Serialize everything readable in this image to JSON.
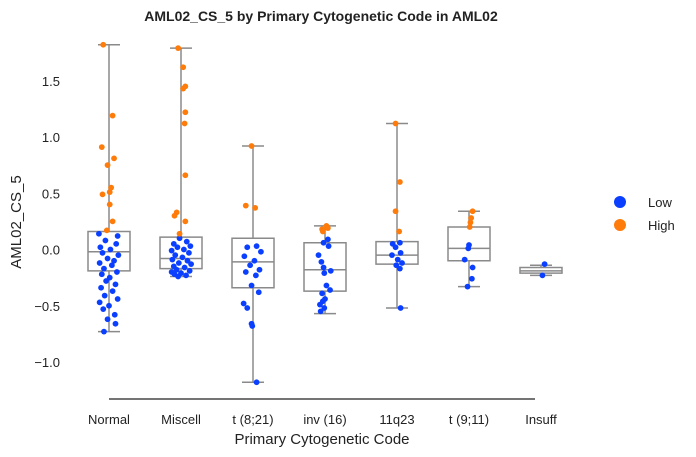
{
  "chart_data": {
    "type": "box+strip",
    "title": "AML02_CS_5 by Primary Cytogenetic Code in AML02",
    "xlabel": "Primary Cytogenetic Code",
    "ylabel": "AML02_CS_5",
    "ylim": [
      -1.33,
      1.85
    ],
    "yticks": [
      -1.0,
      -0.5,
      0.0,
      0.5,
      1.0,
      1.5
    ],
    "ytick_labels": [
      "−1.0",
      "−0.5",
      "0.0",
      "0.5",
      "1.0",
      "1.5"
    ],
    "categories": [
      "Normal",
      "Miscell",
      "t (8;21)",
      "inv (16)",
      "11q23",
      "t (9;11)",
      "Insuff"
    ],
    "colors": {
      "low": "#0a3fff",
      "high": "#ff7b0a",
      "box": "#8a8a8a"
    },
    "legend": {
      "placement": "right",
      "entries": [
        {
          "key": "low",
          "label": "Low"
        },
        {
          "key": "high",
          "label": "High"
        }
      ]
    },
    "boxes": [
      {
        "category": "Normal",
        "whislo": -0.73,
        "q1": -0.19,
        "med": -0.02,
        "q3": 0.16,
        "whishi": 1.82
      },
      {
        "category": "Miscell",
        "whislo": -0.24,
        "q1": -0.17,
        "med": -0.08,
        "q3": 0.11,
        "whishi": 1.79
      },
      {
        "category": "t (8;21)",
        "whislo": -1.18,
        "q1": -0.34,
        "med": -0.11,
        "q3": 0.1,
        "whishi": 0.92
      },
      {
        "category": "inv (16)",
        "whislo": -0.57,
        "q1": -0.37,
        "med": -0.18,
        "q3": 0.06,
        "whishi": 0.21
      },
      {
        "category": "11q23",
        "whislo": -0.52,
        "q1": -0.13,
        "med": -0.05,
        "q3": 0.07,
        "whishi": 1.12
      },
      {
        "category": "t (9;11)",
        "whislo": -0.33,
        "q1": -0.1,
        "med": 0.01,
        "q3": 0.2,
        "whishi": 0.34
      },
      {
        "category": "Insuff",
        "whislo": -0.23,
        "q1": -0.21,
        "med": -0.19,
        "q3": -0.16,
        "whishi": -0.14
      }
    ],
    "series": [
      {
        "name": "Low",
        "group": "low",
        "points": [
          {
            "cat": 0,
            "dx": -0.14,
            "y": 0.14
          },
          {
            "cat": 0,
            "dx": 0.12,
            "y": 0.12
          },
          {
            "cat": 0,
            "dx": -0.05,
            "y": 0.08
          },
          {
            "cat": 0,
            "dx": 0.1,
            "y": 0.05
          },
          {
            "cat": 0,
            "dx": -0.12,
            "y": 0.02
          },
          {
            "cat": 0,
            "dx": 0.02,
            "y": 0.0
          },
          {
            "cat": 0,
            "dx": -0.09,
            "y": -0.03
          },
          {
            "cat": 0,
            "dx": 0.13,
            "y": -0.05
          },
          {
            "cat": 0,
            "dx": -0.02,
            "y": -0.08
          },
          {
            "cat": 0,
            "dx": 0.07,
            "y": -0.1
          },
          {
            "cat": 0,
            "dx": -0.13,
            "y": -0.12
          },
          {
            "cat": 0,
            "dx": 0.04,
            "y": -0.14
          },
          {
            "cat": 0,
            "dx": -0.07,
            "y": -0.17
          },
          {
            "cat": 0,
            "dx": 0.11,
            "y": -0.2
          },
          {
            "cat": 0,
            "dx": -0.1,
            "y": -0.22
          },
          {
            "cat": 0,
            "dx": 0.01,
            "y": -0.25
          },
          {
            "cat": 0,
            "dx": -0.04,
            "y": -0.28
          },
          {
            "cat": 0,
            "dx": 0.09,
            "y": -0.31
          },
          {
            "cat": 0,
            "dx": -0.11,
            "y": -0.34
          },
          {
            "cat": 0,
            "dx": 0.05,
            "y": -0.37
          },
          {
            "cat": 0,
            "dx": -0.06,
            "y": -0.41
          },
          {
            "cat": 0,
            "dx": 0.12,
            "y": -0.44
          },
          {
            "cat": 0,
            "dx": -0.13,
            "y": -0.47
          },
          {
            "cat": 0,
            "dx": 0.0,
            "y": -0.5
          },
          {
            "cat": 0,
            "dx": -0.08,
            "y": -0.53
          },
          {
            "cat": 0,
            "dx": 0.08,
            "y": -0.58
          },
          {
            "cat": 0,
            "dx": -0.02,
            "y": -0.62
          },
          {
            "cat": 0,
            "dx": 0.09,
            "y": -0.66
          },
          {
            "cat": 0,
            "dx": -0.07,
            "y": -0.73
          },
          {
            "cat": 1,
            "dx": -0.02,
            "y": 0.1
          },
          {
            "cat": 1,
            "dx": 0.08,
            "y": 0.07
          },
          {
            "cat": 1,
            "dx": -0.1,
            "y": 0.05
          },
          {
            "cat": 1,
            "dx": 0.13,
            "y": 0.03
          },
          {
            "cat": 1,
            "dx": -0.05,
            "y": 0.02
          },
          {
            "cat": 1,
            "dx": 0.04,
            "y": 0.0
          },
          {
            "cat": 1,
            "dx": -0.13,
            "y": -0.01
          },
          {
            "cat": 1,
            "dx": 0.11,
            "y": -0.03
          },
          {
            "cat": 1,
            "dx": -0.08,
            "y": -0.05
          },
          {
            "cat": 1,
            "dx": 0.02,
            "y": -0.07
          },
          {
            "cat": 1,
            "dx": -0.12,
            "y": -0.09
          },
          {
            "cat": 1,
            "dx": 0.09,
            "y": -0.1
          },
          {
            "cat": 1,
            "dx": -0.03,
            "y": -0.12
          },
          {
            "cat": 1,
            "dx": 0.14,
            "y": -0.13
          },
          {
            "cat": 1,
            "dx": -0.1,
            "y": -0.15
          },
          {
            "cat": 1,
            "dx": 0.05,
            "y": -0.16
          },
          {
            "cat": 1,
            "dx": -0.06,
            "y": -0.18
          },
          {
            "cat": 1,
            "dx": 0.12,
            "y": -0.19
          },
          {
            "cat": 1,
            "dx": -0.13,
            "y": -0.2
          },
          {
            "cat": 1,
            "dx": 0.0,
            "y": -0.21
          },
          {
            "cat": 1,
            "dx": -0.09,
            "y": -0.22
          },
          {
            "cat": 1,
            "dx": 0.07,
            "y": -0.23
          },
          {
            "cat": 1,
            "dx": -0.04,
            "y": -0.24
          },
          {
            "cat": 2,
            "dx": 0.05,
            "y": 0.03
          },
          {
            "cat": 2,
            "dx": -0.08,
            "y": 0.02
          },
          {
            "cat": 2,
            "dx": 0.11,
            "y": -0.02
          },
          {
            "cat": 2,
            "dx": -0.12,
            "y": -0.06
          },
          {
            "cat": 2,
            "dx": 0.02,
            "y": -0.1
          },
          {
            "cat": 2,
            "dx": -0.04,
            "y": -0.14
          },
          {
            "cat": 2,
            "dx": 0.09,
            "y": -0.18
          },
          {
            "cat": 2,
            "dx": -0.1,
            "y": -0.2
          },
          {
            "cat": 2,
            "dx": 0.04,
            "y": -0.23
          },
          {
            "cat": 2,
            "dx": -0.02,
            "y": -0.32
          },
          {
            "cat": 2,
            "dx": 0.08,
            "y": -0.38
          },
          {
            "cat": 2,
            "dx": -0.13,
            "y": -0.48
          },
          {
            "cat": 2,
            "dx": -0.08,
            "y": -0.52
          },
          {
            "cat": 2,
            "dx": -0.02,
            "y": -0.66
          },
          {
            "cat": 2,
            "dx": -0.01,
            "y": -0.68
          },
          {
            "cat": 2,
            "dx": 0.05,
            "y": -1.18
          },
          {
            "cat": 3,
            "dx": 0.04,
            "y": 0.09
          },
          {
            "cat": 3,
            "dx": -0.02,
            "y": 0.06
          },
          {
            "cat": 3,
            "dx": 0.05,
            "y": 0.03
          },
          {
            "cat": 3,
            "dx": -0.09,
            "y": -0.05
          },
          {
            "cat": 3,
            "dx": -0.05,
            "y": -0.11
          },
          {
            "cat": 3,
            "dx": -0.02,
            "y": -0.16
          },
          {
            "cat": 3,
            "dx": 0.08,
            "y": -0.19
          },
          {
            "cat": 3,
            "dx": -0.01,
            "y": -0.21
          },
          {
            "cat": 3,
            "dx": 0.02,
            "y": -0.32
          },
          {
            "cat": 3,
            "dx": 0.07,
            "y": -0.36
          },
          {
            "cat": 3,
            "dx": -0.04,
            "y": -0.39
          },
          {
            "cat": 3,
            "dx": 0.0,
            "y": -0.44
          },
          {
            "cat": 3,
            "dx": -0.03,
            "y": -0.46
          },
          {
            "cat": 3,
            "dx": -0.07,
            "y": -0.49
          },
          {
            "cat": 3,
            "dx": -0.01,
            "y": -0.52
          },
          {
            "cat": 3,
            "dx": -0.06,
            "y": -0.55
          },
          {
            "cat": 4,
            "dx": 0.04,
            "y": 0.06
          },
          {
            "cat": 4,
            "dx": -0.06,
            "y": 0.05
          },
          {
            "cat": 4,
            "dx": -0.02,
            "y": 0.02
          },
          {
            "cat": 4,
            "dx": 0.05,
            "y": -0.03
          },
          {
            "cat": 4,
            "dx": -0.07,
            "y": -0.05
          },
          {
            "cat": 4,
            "dx": 0.01,
            "y": -0.09
          },
          {
            "cat": 4,
            "dx": 0.07,
            "y": -0.12
          },
          {
            "cat": 4,
            "dx": -0.01,
            "y": -0.14
          },
          {
            "cat": 4,
            "dx": 0.04,
            "y": -0.17
          },
          {
            "cat": 4,
            "dx": 0.05,
            "y": -0.52
          },
          {
            "cat": 5,
            "dx": 0.0,
            "y": 0.04
          },
          {
            "cat": 5,
            "dx": -0.01,
            "y": 0.01
          },
          {
            "cat": 5,
            "dx": -0.06,
            "y": -0.09
          },
          {
            "cat": 5,
            "dx": 0.05,
            "y": -0.16
          },
          {
            "cat": 5,
            "dx": 0.04,
            "y": -0.26
          },
          {
            "cat": 5,
            "dx": -0.02,
            "y": -0.33
          },
          {
            "cat": 6,
            "dx": 0.05,
            "y": -0.13
          },
          {
            "cat": 6,
            "dx": 0.02,
            "y": -0.23
          }
        ]
      },
      {
        "name": "High",
        "group": "high",
        "points": [
          {
            "cat": 0,
            "dx": -0.08,
            "y": 1.82
          },
          {
            "cat": 0,
            "dx": 0.05,
            "y": 1.19
          },
          {
            "cat": 0,
            "dx": -0.1,
            "y": 0.91
          },
          {
            "cat": 0,
            "dx": 0.07,
            "y": 0.81
          },
          {
            "cat": 0,
            "dx": -0.02,
            "y": 0.75
          },
          {
            "cat": 0,
            "dx": 0.03,
            "y": 0.55
          },
          {
            "cat": 0,
            "dx": 0.01,
            "y": 0.51
          },
          {
            "cat": 0,
            "dx": -0.09,
            "y": 0.49
          },
          {
            "cat": 0,
            "dx": 0.01,
            "y": 0.4
          },
          {
            "cat": 0,
            "dx": 0.05,
            "y": 0.25
          },
          {
            "cat": 0,
            "dx": -0.03,
            "y": 0.17
          },
          {
            "cat": 1,
            "dx": -0.04,
            "y": 1.79
          },
          {
            "cat": 1,
            "dx": 0.03,
            "y": 1.62
          },
          {
            "cat": 1,
            "dx": 0.06,
            "y": 1.45
          },
          {
            "cat": 1,
            "dx": 0.03,
            "y": 1.43
          },
          {
            "cat": 1,
            "dx": 0.06,
            "y": 1.22
          },
          {
            "cat": 1,
            "dx": 0.05,
            "y": 1.12
          },
          {
            "cat": 1,
            "dx": 0.06,
            "y": 0.66
          },
          {
            "cat": 1,
            "dx": -0.06,
            "y": 0.33
          },
          {
            "cat": 1,
            "dx": -0.09,
            "y": 0.3
          },
          {
            "cat": 1,
            "dx": 0.06,
            "y": 0.25
          },
          {
            "cat": 1,
            "dx": -0.02,
            "y": 0.14
          },
          {
            "cat": 2,
            "dx": -0.02,
            "y": 0.92
          },
          {
            "cat": 2,
            "dx": -0.1,
            "y": 0.39
          },
          {
            "cat": 2,
            "dx": 0.03,
            "y": 0.37
          },
          {
            "cat": 3,
            "dx": 0.02,
            "y": 0.21
          },
          {
            "cat": 3,
            "dx": 0.04,
            "y": 0.19
          },
          {
            "cat": 3,
            "dx": -0.04,
            "y": 0.18
          },
          {
            "cat": 3,
            "dx": -0.03,
            "y": 0.16
          },
          {
            "cat": 4,
            "dx": -0.02,
            "y": 1.12
          },
          {
            "cat": 4,
            "dx": 0.04,
            "y": 0.6
          },
          {
            "cat": 4,
            "dx": -0.02,
            "y": 0.34
          },
          {
            "cat": 4,
            "dx": 0.03,
            "y": 0.16
          },
          {
            "cat": 5,
            "dx": 0.05,
            "y": 0.34
          },
          {
            "cat": 5,
            "dx": 0.03,
            "y": 0.28
          },
          {
            "cat": 5,
            "dx": 0.02,
            "y": 0.24
          },
          {
            "cat": 5,
            "dx": 0.01,
            "y": 0.2
          }
        ]
      }
    ]
  }
}
